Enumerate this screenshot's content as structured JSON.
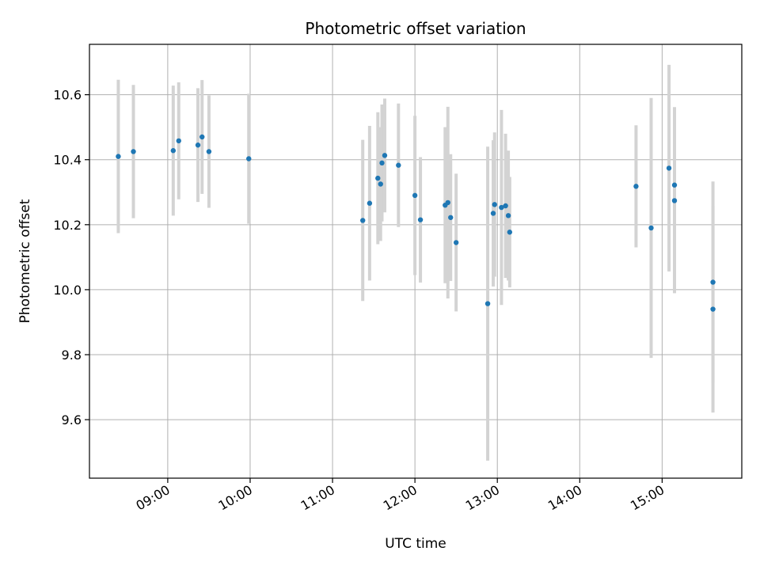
{
  "chart_data": {
    "type": "scatter",
    "title": "Photometric offset variation",
    "xlabel": "UTC time",
    "ylabel": "Photometric offset",
    "x_unit": "hours UTC",
    "xlim": [
      "08:03",
      "15:58"
    ],
    "ylim": [
      9.42,
      10.755
    ],
    "x_ticks": [
      "09:00",
      "10:00",
      "11:00",
      "12:00",
      "13:00",
      "14:00",
      "15:00"
    ],
    "y_ticks": [
      "9.6",
      "9.8",
      "10.0",
      "10.2",
      "10.4",
      "10.6"
    ],
    "grid": true,
    "colors": {
      "point": "#1f77b4",
      "errorbar": "#d3d3d3",
      "grid": "#b0b0b0"
    },
    "points": [
      {
        "x": "08:24",
        "y": 10.41,
        "err": 0.236
      },
      {
        "x": "08:35",
        "y": 10.425,
        "err": 0.205
      },
      {
        "x": "09:04",
        "y": 10.428,
        "err": 0.2
      },
      {
        "x": "09:08",
        "y": 10.458,
        "err": 0.18
      },
      {
        "x": "09:22",
        "y": 10.445,
        "err": 0.175
      },
      {
        "x": "09:25",
        "y": 10.47,
        "err": 0.175
      },
      {
        "x": "09:30",
        "y": 10.425,
        "err": 0.173
      },
      {
        "x": "09:59",
        "y": 10.403,
        "err": 0.2
      },
      {
        "x": "11:22",
        "y": 10.213,
        "err": 0.248
      },
      {
        "x": "11:27",
        "y": 10.266,
        "err": 0.238
      },
      {
        "x": "11:33",
        "y": 10.343,
        "err": 0.203
      },
      {
        "x": "11:35",
        "y": 10.325,
        "err": 0.175
      },
      {
        "x": "11:36",
        "y": 10.39,
        "err": 0.18
      },
      {
        "x": "11:38",
        "y": 10.413,
        "err": 0.175
      },
      {
        "x": "11:48",
        "y": 10.383,
        "err": 0.19
      },
      {
        "x": "12:00",
        "y": 10.29,
        "err": 0.245
      },
      {
        "x": "12:04",
        "y": 10.215,
        "err": 0.193
      },
      {
        "x": "12:22",
        "y": 10.26,
        "err": 0.24
      },
      {
        "x": "12:24",
        "y": 10.268,
        "err": 0.295
      },
      {
        "x": "12:26",
        "y": 10.222,
        "err": 0.195
      },
      {
        "x": "12:30",
        "y": 10.145,
        "err": 0.212
      },
      {
        "x": "12:53",
        "y": 9.957,
        "err": 0.483
      },
      {
        "x": "12:57",
        "y": 10.235,
        "err": 0.225
      },
      {
        "x": "12:58",
        "y": 10.262,
        "err": 0.222
      },
      {
        "x": "13:03",
        "y": 10.253,
        "err": 0.3
      },
      {
        "x": "13:06",
        "y": 10.258,
        "err": 0.222
      },
      {
        "x": "13:08",
        "y": 10.228,
        "err": 0.2
      },
      {
        "x": "13:09",
        "y": 10.177,
        "err": 0.17
      },
      {
        "x": "14:41",
        "y": 10.318,
        "err": 0.188
      },
      {
        "x": "14:52",
        "y": 10.19,
        "err": 0.4
      },
      {
        "x": "15:05",
        "y": 10.374,
        "err": 0.318
      },
      {
        "x": "15:09",
        "y": 10.322,
        "err": 0.24
      },
      {
        "x": "15:09",
        "y": 10.274,
        "err": 0.285
      },
      {
        "x": "15:37",
        "y": 10.023,
        "err": 0.31
      },
      {
        "x": "15:37",
        "y": 9.94,
        "err": 0.318
      }
    ]
  }
}
